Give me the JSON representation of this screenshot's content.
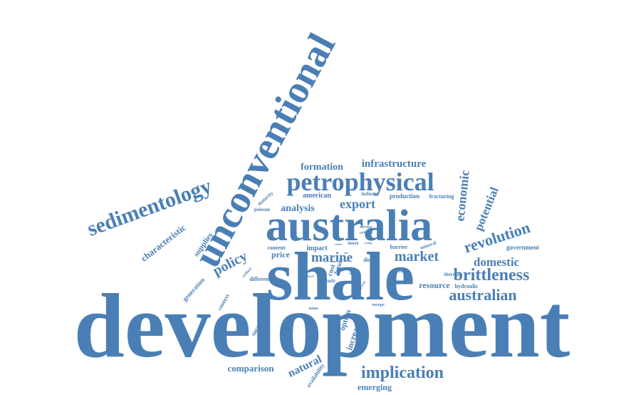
{
  "colors": {
    "word": "#4a7fb5",
    "background": "#ffffff"
  },
  "words": [
    {
      "text": "development",
      "weight": 100
    },
    {
      "text": "shale",
      "weight": 80
    },
    {
      "text": "australia",
      "weight": 75
    },
    {
      "text": "unconventional",
      "weight": 65
    },
    {
      "text": "petrophysical",
      "weight": 45
    },
    {
      "text": "sedimentology",
      "weight": 40
    },
    {
      "text": "implication",
      "weight": 32
    },
    {
      "text": "brittleness",
      "weight": 30
    },
    {
      "text": "revolution",
      "weight": 28
    },
    {
      "text": "australian",
      "weight": 27
    },
    {
      "text": "market",
      "weight": 26
    },
    {
      "text": "marine",
      "weight": 25
    },
    {
      "text": "policy",
      "weight": 25
    },
    {
      "text": "economic",
      "weight": 24
    },
    {
      "text": "domestic",
      "weight": 22
    },
    {
      "text": "natural",
      "weight": 22
    },
    {
      "text": "potential",
      "weight": 21
    },
    {
      "text": "export",
      "weight": 21
    },
    {
      "text": "infrastructure",
      "weight": 20
    },
    {
      "text": "formation",
      "weight": 18
    },
    {
      "text": "comparison",
      "weight": 17
    },
    {
      "text": "characteristic",
      "weight": 16
    },
    {
      "text": "analysis",
      "weight": 16
    },
    {
      "text": "resource",
      "weight": 15
    },
    {
      "text": "emerging",
      "weight": 14
    },
    {
      "text": "price",
      "weight": 14
    },
    {
      "text": "increase",
      "weight": 14
    },
    {
      "text": "supplies",
      "weight": 13
    },
    {
      "text": "option",
      "weight": 13
    },
    {
      "text": "impact",
      "weight": 12
    },
    {
      "text": "government",
      "weight": 11
    },
    {
      "text": "american",
      "weight": 11
    },
    {
      "text": "cost",
      "weight": 11
    },
    {
      "text": "future",
      "weight": 10
    },
    {
      "text": "production",
      "weight": 10
    },
    {
      "text": "fracturing",
      "weight": 9
    },
    {
      "text": "success",
      "weight": 10
    },
    {
      "text": "hydraulic",
      "weight": 9
    },
    {
      "text": "generation",
      "weight": 9
    },
    {
      "text": "context",
      "weight": 9
    },
    {
      "text": "availability",
      "weight": 9
    },
    {
      "text": "content",
      "weight": 9
    },
    {
      "text": "barrier",
      "weight": 9
    },
    {
      "text": "different",
      "weight": 8
    },
    {
      "text": "thermal",
      "weight": 8
    },
    {
      "text": "direct",
      "weight": 8
    },
    {
      "text": "basin",
      "weight": 7
    },
    {
      "text": "study",
      "weight": 7
    },
    {
      "text": "maturity",
      "weight": 7
    },
    {
      "text": "poisson",
      "weight": 7
    },
    {
      "text": "industry",
      "weight": 7
    },
    {
      "text": "mineral",
      "weight": 7
    },
    {
      "text": "service",
      "weight": 7
    },
    {
      "text": "critical",
      "weight": 7
    },
    {
      "text": "more",
      "weight": 7
    },
    {
      "text": "addition",
      "weight": 7
    },
    {
      "text": "asian",
      "weight": 7
    },
    {
      "text": "europe",
      "weight": 6
    },
    {
      "text": "reduce",
      "weight": 6
    },
    {
      "text": "visible",
      "weight": 5
    },
    {
      "text": "young",
      "weight": 5
    },
    {
      "text": "reach",
      "weight": 5
    },
    {
      "text": "fossil",
      "weight": 5
    },
    {
      "text": "fuel",
      "weight": 5
    },
    {
      "text": "level",
      "weight": 5
    },
    {
      "text": "ratio",
      "weight": 5
    },
    {
      "text": "new",
      "weight": 5
    },
    {
      "text": "bias",
      "weight": 5
    },
    {
      "text": "geology",
      "weight": 5
    },
    {
      "text": "company",
      "weight": 5
    },
    {
      "text": "effect",
      "weight": 5
    },
    {
      "text": "use",
      "weight": 5
    }
  ]
}
